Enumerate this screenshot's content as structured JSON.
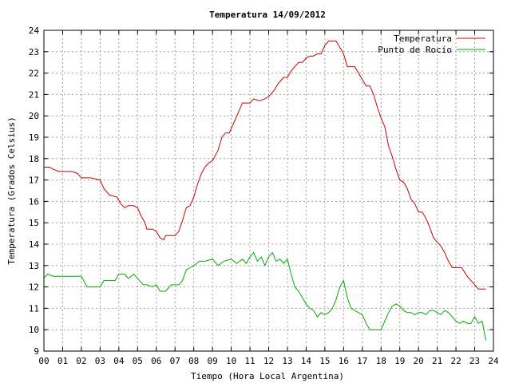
{
  "chart_data": {
    "type": "line",
    "title": "Temperatura 14/09/2012",
    "xlabel": "Tiempo (Hora Local Argentina)",
    "ylabel": "Temperatura (Grados Celsius)",
    "xlim": [
      0,
      24
    ],
    "ylim": [
      9,
      24
    ],
    "x_ticks": [
      "00",
      "01",
      "02",
      "03",
      "04",
      "05",
      "06",
      "07",
      "08",
      "09",
      "10",
      "11",
      "12",
      "13",
      "14",
      "15",
      "16",
      "17",
      "18",
      "19",
      "20",
      "21",
      "22",
      "23",
      "24"
    ],
    "y_ticks": [
      "9",
      "10",
      "11",
      "12",
      "13",
      "14",
      "15",
      "16",
      "17",
      "18",
      "19",
      "20",
      "21",
      "22",
      "23",
      "24"
    ],
    "grid": true,
    "legend_position": "top-right",
    "series": [
      {
        "name": "Temperatura",
        "color": "#cc0000",
        "x": [
          0.0,
          0.3,
          0.5,
          0.8,
          1.0,
          1.5,
          1.8,
          2.0,
          2.5,
          3.0,
          3.2,
          3.5,
          3.9,
          4.1,
          4.3,
          4.5,
          4.8,
          5.0,
          5.2,
          5.4,
          5.5,
          5.8,
          6.0,
          6.2,
          6.4,
          6.5,
          6.8,
          7.0,
          7.2,
          7.4,
          7.6,
          7.8,
          8.0,
          8.2,
          8.4,
          8.6,
          8.8,
          9.0,
          9.3,
          9.5,
          9.7,
          9.9,
          10.1,
          10.4,
          10.6,
          10.8,
          11.0,
          11.2,
          11.5,
          11.8,
          12.0,
          12.3,
          12.5,
          12.8,
          13.0,
          13.2,
          13.4,
          13.6,
          13.8,
          14.0,
          14.2,
          14.4,
          14.6,
          14.8,
          15.0,
          15.2,
          15.4,
          15.6,
          15.8,
          16.0,
          16.2,
          16.4,
          16.6,
          16.8,
          17.0,
          17.2,
          17.4,
          17.6,
          17.8,
          18.0,
          18.2,
          18.4,
          18.6,
          18.8,
          19.0,
          19.2,
          19.4,
          19.6,
          19.8,
          20.0,
          20.2,
          20.4,
          20.6,
          20.8,
          21.0,
          21.2,
          21.4,
          21.6,
          21.8,
          22.0,
          22.3,
          22.6,
          22.9,
          23.2,
          23.4,
          23.6
        ],
        "values": [
          17.6,
          17.6,
          17.5,
          17.4,
          17.4,
          17.4,
          17.3,
          17.1,
          17.1,
          17.0,
          16.6,
          16.3,
          16.2,
          15.9,
          15.7,
          15.8,
          15.8,
          15.7,
          15.3,
          15.0,
          14.7,
          14.7,
          14.6,
          14.3,
          14.2,
          14.4,
          14.4,
          14.4,
          14.6,
          15.1,
          15.7,
          15.8,
          16.2,
          16.8,
          17.3,
          17.6,
          17.8,
          17.9,
          18.4,
          19.0,
          19.2,
          19.2,
          19.6,
          20.2,
          20.6,
          20.6,
          20.6,
          20.8,
          20.7,
          20.8,
          20.9,
          21.2,
          21.5,
          21.8,
          21.8,
          22.1,
          22.3,
          22.5,
          22.5,
          22.7,
          22.8,
          22.8,
          22.9,
          22.9,
          23.3,
          23.5,
          23.5,
          23.5,
          23.2,
          22.9,
          22.3,
          22.3,
          22.3,
          22.0,
          21.7,
          21.4,
          21.4,
          21.0,
          20.4,
          19.9,
          19.5,
          18.6,
          18.1,
          17.5,
          17.0,
          16.9,
          16.6,
          16.1,
          15.9,
          15.5,
          15.5,
          15.2,
          14.8,
          14.3,
          14.1,
          13.9,
          13.6,
          13.2,
          12.9,
          12.9,
          12.9,
          12.5,
          12.2,
          11.9,
          11.9,
          11.9
        ]
      },
      {
        "name": "Punto de Rocío",
        "color": "#00aa00",
        "x": [
          0.0,
          0.2,
          0.5,
          1.0,
          1.5,
          2.0,
          2.3,
          2.5,
          3.0,
          3.2,
          3.5,
          3.8,
          4.0,
          4.3,
          4.5,
          4.8,
          5.0,
          5.3,
          5.5,
          5.8,
          6.0,
          6.2,
          6.4,
          6.5,
          6.8,
          7.0,
          7.2,
          7.4,
          7.6,
          7.8,
          8.0,
          8.3,
          8.6,
          9.0,
          9.3,
          9.6,
          10.0,
          10.3,
          10.6,
          10.8,
          11.0,
          11.2,
          11.4,
          11.6,
          11.8,
          12.0,
          12.2,
          12.4,
          12.6,
          12.8,
          13.0,
          13.2,
          13.4,
          13.6,
          13.8,
          14.0,
          14.2,
          14.4,
          14.6,
          14.8,
          15.0,
          15.2,
          15.4,
          15.6,
          15.8,
          16.0,
          16.2,
          16.4,
          16.6,
          16.8,
          17.0,
          17.2,
          17.4,
          17.6,
          17.8,
          18.0,
          18.2,
          18.4,
          18.6,
          18.8,
          19.0,
          19.2,
          19.4,
          19.6,
          19.8,
          20.0,
          20.2,
          20.4,
          20.6,
          20.8,
          21.0,
          21.2,
          21.4,
          21.6,
          21.8,
          22.0,
          22.2,
          22.4,
          22.6,
          22.8,
          23.0,
          23.2,
          23.4,
          23.6
        ],
        "values": [
          12.4,
          12.6,
          12.5,
          12.5,
          12.5,
          12.5,
          12.0,
          12.0,
          12.0,
          12.3,
          12.3,
          12.3,
          12.6,
          12.6,
          12.4,
          12.6,
          12.4,
          12.1,
          12.1,
          12.0,
          12.1,
          11.8,
          11.8,
          11.8,
          12.1,
          12.1,
          12.1,
          12.3,
          12.8,
          12.9,
          13.0,
          13.2,
          13.2,
          13.3,
          13.0,
          13.2,
          13.3,
          13.1,
          13.3,
          13.1,
          13.4,
          13.6,
          13.2,
          13.4,
          13.0,
          13.4,
          13.6,
          13.2,
          13.3,
          13.1,
          13.3,
          12.6,
          12.0,
          11.8,
          11.5,
          11.2,
          11.0,
          10.9,
          10.6,
          10.8,
          10.7,
          10.8,
          11.0,
          11.4,
          12.0,
          12.3,
          11.5,
          11.0,
          10.9,
          10.8,
          10.7,
          10.3,
          10.0,
          10.0,
          10.0,
          10.0,
          10.4,
          10.8,
          11.1,
          11.2,
          11.1,
          10.9,
          10.8,
          10.8,
          10.7,
          10.8,
          10.8,
          10.7,
          10.9,
          10.9,
          10.8,
          10.7,
          10.9,
          10.8,
          10.6,
          10.4,
          10.3,
          10.4,
          10.3,
          10.3,
          10.6,
          10.3,
          10.4,
          9.5
        ]
      }
    ]
  }
}
